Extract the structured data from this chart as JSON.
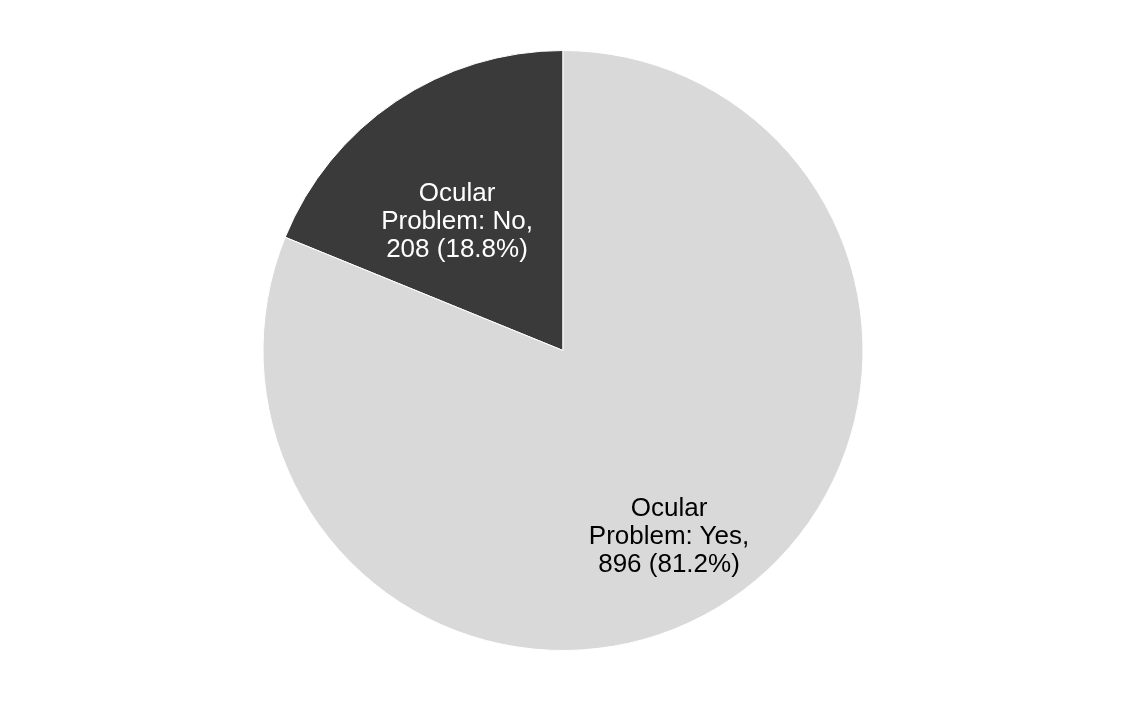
{
  "chart_data": {
    "type": "pie",
    "categories": [
      null,
      null
    ],
    "values": [
      208,
      896
    ],
    "value_labels": [
      "Ocular Problem: No, 208  (18.8%)",
      "Ocular Problem: Yes, 896 (81.2%)"
    ],
    "colors": [
      "#3a3a3a",
      "#d9d9d9"
    ],
    "legend": false
  }
}
